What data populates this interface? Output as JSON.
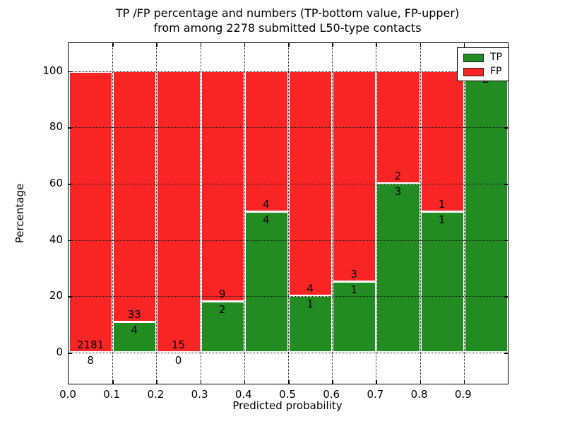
{
  "title": {
    "line1": "TP /FP percentage and numbers (TP-bottom value, FP-upper)",
    "line2": "from among 2278 submitted L50-type contacts"
  },
  "axes": {
    "xlabel": "Predicted probability",
    "ylabel": "Percentage",
    "xtick_labels": [
      "0.0",
      "0.1",
      "0.2",
      "0.3",
      "0.4",
      "0.5",
      "0.6",
      "0.7",
      "0.8",
      "0.9"
    ],
    "ytick_labels": [
      "0",
      "20",
      "40",
      "60",
      "80",
      "100"
    ],
    "ytick_values": [
      0,
      20,
      40,
      60,
      80,
      100
    ]
  },
  "legend": {
    "items": [
      {
        "label": "TP",
        "color": "#228b22"
      },
      {
        "label": "FP",
        "color": "#f92525"
      }
    ]
  },
  "colors": {
    "tp": "#228b22",
    "fp": "#f92525",
    "grid": "#1a1a1a"
  },
  "chart_data": {
    "type": "bar",
    "stacked": true,
    "normalized_to": 100,
    "title": "TP /FP percentage and numbers (TP-bottom value, FP-upper) from among 2278 submitted L50-type contacts",
    "xlabel": "Predicted probability",
    "ylabel": "Percentage",
    "xlim": [
      0.0,
      1.0
    ],
    "ylim": [
      -11,
      110
    ],
    "bin_width": 0.1,
    "grid": true,
    "legend_position": "upper right",
    "total_contacts": 2278,
    "series_names": [
      "TP",
      "FP"
    ],
    "bins": [
      {
        "x0": 0.0,
        "x1": 0.1,
        "tp": 8,
        "fp": 2181,
        "tp_pct": 0.37,
        "fp_label": "2181",
        "tp_label": "8"
      },
      {
        "x0": 0.1,
        "x1": 0.2,
        "tp": 4,
        "fp": 33,
        "tp_pct": 10.81,
        "fp_label": "33",
        "tp_label": "4"
      },
      {
        "x0": 0.2,
        "x1": 0.3,
        "tp": 0,
        "fp": 15,
        "tp_pct": 0.0,
        "fp_label": "15",
        "tp_label": "0"
      },
      {
        "x0": 0.3,
        "x1": 0.4,
        "tp": 2,
        "fp": 9,
        "tp_pct": 18.18,
        "fp_label": "9",
        "tp_label": "2"
      },
      {
        "x0": 0.4,
        "x1": 0.5,
        "tp": 4,
        "fp": 4,
        "tp_pct": 50.0,
        "fp_label": "4",
        "tp_label": "4"
      },
      {
        "x0": 0.5,
        "x1": 0.6,
        "tp": 1,
        "fp": 4,
        "tp_pct": 20.0,
        "fp_label": "4",
        "tp_label": "1"
      },
      {
        "x0": 0.6,
        "x1": 0.7,
        "tp": 1,
        "fp": 3,
        "tp_pct": 25.0,
        "fp_label": "3",
        "tp_label": "1"
      },
      {
        "x0": 0.7,
        "x1": 0.8,
        "tp": 3,
        "fp": 2,
        "tp_pct": 60.0,
        "fp_label": "2",
        "tp_label": "3"
      },
      {
        "x0": 0.8,
        "x1": 0.9,
        "tp": 1,
        "fp": 1,
        "tp_pct": 50.0,
        "fp_label": "1",
        "tp_label": "1"
      },
      {
        "x0": 0.9,
        "x1": 1.0,
        "tp": 2,
        "fp": 0,
        "tp_pct": 100.0,
        "fp_label": null,
        "tp_label": "2"
      }
    ]
  }
}
